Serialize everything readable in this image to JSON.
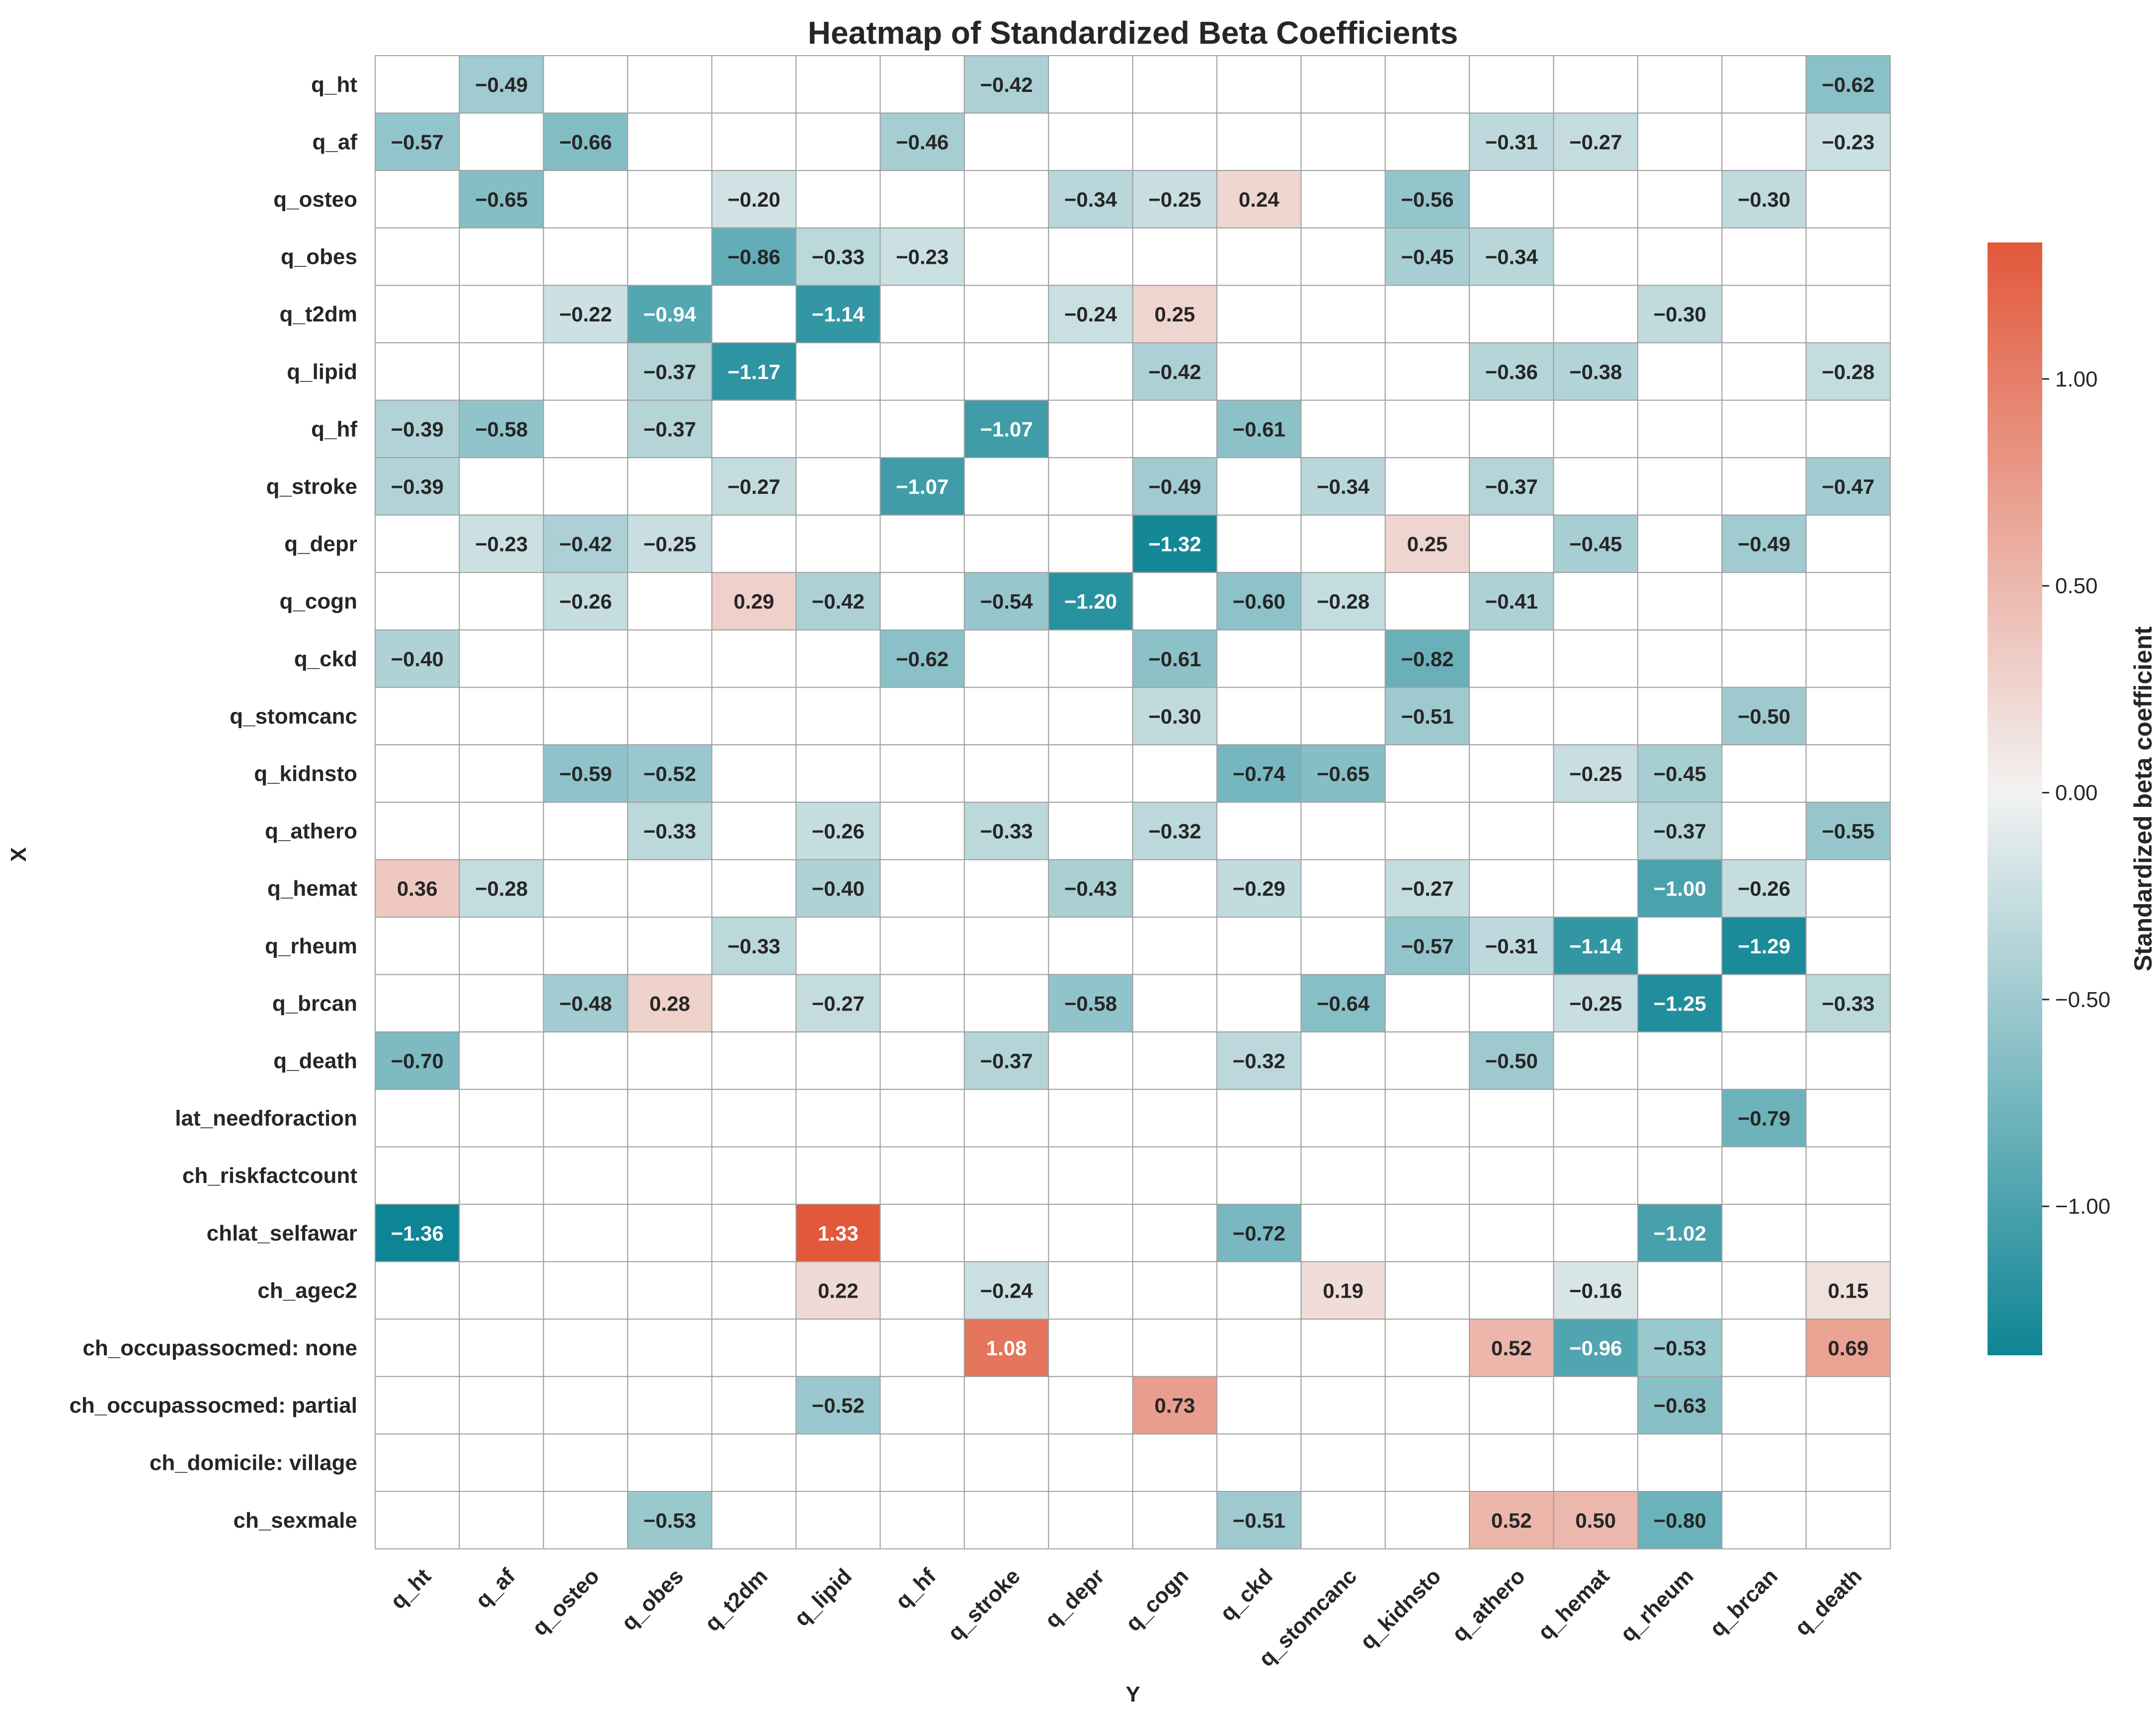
{
  "chart_data": {
    "type": "heatmap",
    "title": "Heatmap of Standardized Beta Coefficients",
    "xlabel": "Y",
    "ylabel": "X",
    "x_categories": [
      "q_ht",
      "q_af",
      "q_osteo",
      "q_obes",
      "q_t2dm",
      "q_lipid",
      "q_hf",
      "q_stroke",
      "q_depr",
      "q_cogn",
      "q_ckd",
      "q_stomcanc",
      "q_kidnsto",
      "q_athero",
      "q_hemat",
      "q_rheum",
      "q_brcan",
      "q_death"
    ],
    "y_categories": [
      "q_ht",
      "q_af",
      "q_osteo",
      "q_obes",
      "q_t2dm",
      "q_lipid",
      "q_hf",
      "q_stroke",
      "q_depr",
      "q_cogn",
      "q_ckd",
      "q_stomcanc",
      "q_kidnsto",
      "q_athero",
      "q_hemat",
      "q_rheum",
      "q_brcan",
      "q_death",
      "lat_needforaction",
      "ch_riskfactcount",
      "chlat_selfawar",
      "ch_agec2",
      "ch_occupassocmed: none",
      "ch_occupassocmed: partial",
      "ch_domicile: village",
      "ch_sexmale"
    ],
    "values": [
      [
        null,
        -0.49,
        null,
        null,
        null,
        null,
        null,
        -0.42,
        null,
        null,
        null,
        null,
        null,
        null,
        null,
        null,
        null,
        -0.62
      ],
      [
        -0.57,
        null,
        -0.66,
        null,
        null,
        null,
        -0.46,
        null,
        null,
        null,
        null,
        null,
        null,
        -0.31,
        -0.27,
        null,
        null,
        -0.23
      ],
      [
        null,
        -0.65,
        null,
        null,
        -0.2,
        null,
        null,
        null,
        -0.34,
        -0.25,
        0.24,
        null,
        -0.56,
        null,
        null,
        null,
        -0.3,
        null
      ],
      [
        null,
        null,
        null,
        null,
        -0.86,
        -0.33,
        -0.23,
        null,
        null,
        null,
        null,
        null,
        -0.45,
        -0.34,
        null,
        null,
        null,
        null
      ],
      [
        null,
        null,
        -0.22,
        -0.94,
        null,
        -1.14,
        null,
        null,
        -0.24,
        0.25,
        null,
        null,
        null,
        null,
        null,
        -0.3,
        null,
        null
      ],
      [
        null,
        null,
        null,
        -0.37,
        -1.17,
        null,
        null,
        null,
        null,
        -0.42,
        null,
        null,
        null,
        -0.36,
        -0.38,
        null,
        null,
        -0.28
      ],
      [
        -0.39,
        -0.58,
        null,
        -0.37,
        null,
        null,
        null,
        -1.07,
        null,
        null,
        -0.61,
        null,
        null,
        null,
        null,
        null,
        null,
        null
      ],
      [
        -0.39,
        null,
        null,
        null,
        -0.27,
        null,
        -1.07,
        null,
        null,
        -0.49,
        null,
        -0.34,
        null,
        -0.37,
        null,
        null,
        null,
        -0.47
      ],
      [
        null,
        -0.23,
        -0.42,
        -0.25,
        null,
        null,
        null,
        null,
        null,
        -1.32,
        null,
        null,
        0.25,
        null,
        -0.45,
        null,
        -0.49,
        null
      ],
      [
        null,
        null,
        -0.26,
        null,
        0.29,
        -0.42,
        null,
        -0.54,
        -1.2,
        null,
        -0.6,
        -0.28,
        null,
        -0.41,
        null,
        null,
        null,
        null
      ],
      [
        -0.4,
        null,
        null,
        null,
        null,
        null,
        -0.62,
        null,
        null,
        -0.61,
        null,
        null,
        -0.82,
        null,
        null,
        null,
        null,
        null
      ],
      [
        null,
        null,
        null,
        null,
        null,
        null,
        null,
        null,
        null,
        -0.3,
        null,
        null,
        -0.51,
        null,
        null,
        null,
        -0.5,
        null
      ],
      [
        null,
        null,
        -0.59,
        -0.52,
        null,
        null,
        null,
        null,
        null,
        null,
        -0.74,
        -0.65,
        null,
        null,
        -0.25,
        -0.45,
        null,
        null
      ],
      [
        null,
        null,
        null,
        -0.33,
        null,
        -0.26,
        null,
        -0.33,
        null,
        -0.32,
        null,
        null,
        null,
        null,
        null,
        -0.37,
        null,
        -0.55
      ],
      [
        0.36,
        -0.28,
        null,
        null,
        null,
        -0.4,
        null,
        null,
        -0.43,
        null,
        -0.29,
        null,
        -0.27,
        null,
        null,
        -1.0,
        -0.26,
        null
      ],
      [
        null,
        null,
        null,
        null,
        -0.33,
        null,
        null,
        null,
        null,
        null,
        null,
        null,
        -0.57,
        -0.31,
        -1.14,
        null,
        -1.29,
        null
      ],
      [
        null,
        null,
        -0.48,
        0.28,
        null,
        -0.27,
        null,
        null,
        -0.58,
        null,
        null,
        -0.64,
        null,
        null,
        -0.25,
        -1.25,
        null,
        -0.33
      ],
      [
        -0.7,
        null,
        null,
        null,
        null,
        null,
        null,
        -0.37,
        null,
        null,
        -0.32,
        null,
        null,
        -0.5,
        null,
        null,
        null,
        null
      ],
      [
        null,
        null,
        null,
        null,
        null,
        null,
        null,
        null,
        null,
        null,
        null,
        null,
        null,
        null,
        null,
        null,
        -0.79,
        null
      ],
      [
        null,
        null,
        null,
        null,
        null,
        null,
        null,
        null,
        null,
        null,
        null,
        null,
        null,
        null,
        null,
        null,
        null,
        null
      ],
      [
        -1.36,
        null,
        null,
        null,
        null,
        1.33,
        null,
        null,
        null,
        null,
        -0.72,
        null,
        null,
        null,
        null,
        -1.02,
        null,
        null
      ],
      [
        null,
        null,
        null,
        null,
        null,
        0.22,
        null,
        -0.24,
        null,
        null,
        null,
        0.19,
        null,
        null,
        -0.16,
        null,
        null,
        0.15
      ],
      [
        null,
        null,
        null,
        null,
        null,
        null,
        null,
        1.08,
        null,
        null,
        null,
        null,
        null,
        0.52,
        -0.96,
        -0.53,
        null,
        0.69
      ],
      [
        null,
        null,
        null,
        null,
        null,
        -0.52,
        null,
        null,
        null,
        0.73,
        null,
        null,
        null,
        null,
        null,
        -0.63,
        null,
        null
      ],
      [
        null,
        null,
        null,
        null,
        null,
        null,
        null,
        null,
        null,
        null,
        null,
        null,
        null,
        null,
        null,
        null,
        null,
        null
      ],
      [
        null,
        null,
        null,
        -0.53,
        null,
        null,
        null,
        null,
        null,
        null,
        -0.51,
        null,
        null,
        0.52,
        0.5,
        -0.8,
        null,
        null
      ]
    ],
    "colorbar": {
      "label": "Standardized beta coefficient",
      "vmin": -1.36,
      "vmax": 1.33,
      "ticks": [
        -1.0,
        -0.5,
        0.0,
        0.5,
        1.0
      ],
      "tick_labels": [
        "−1.00",
        "−0.50",
        "0.00",
        "0.50",
        "1.00"
      ],
      "color_negative": "#0e8594",
      "color_center": "#f2f2f2",
      "color_positive": "#e2583b"
    },
    "grid": true,
    "grid_color": "#a0a0a0"
  }
}
